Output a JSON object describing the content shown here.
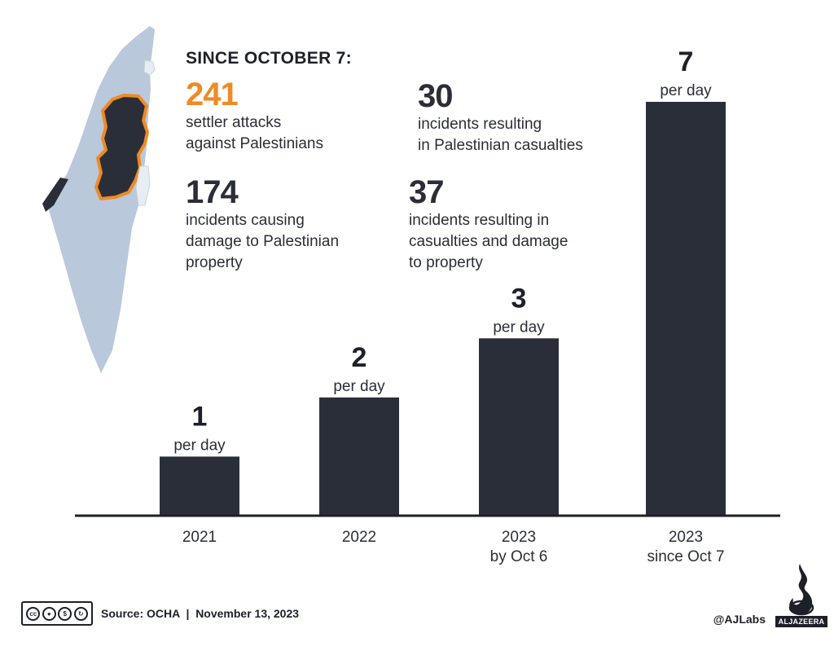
{
  "heading": "SINCE OCTOBER 7:",
  "stats": [
    {
      "number": "241",
      "text_lines": [
        "settler attacks",
        "against Palestinians"
      ]
    },
    {
      "number": "30",
      "text_lines": [
        "incidents resulting",
        "in Palestinian casualties"
      ]
    },
    {
      "number": "174",
      "text_lines": [
        "incidents causing",
        "damage to Palestinian",
        "property"
      ]
    },
    {
      "number": "37",
      "text_lines": [
        "incidents resulting in",
        "casualties and damage",
        "to property"
      ]
    }
  ],
  "colors": {
    "accent": "#f08a24",
    "bar": "#2a2e38",
    "map_land": "#b9c8da",
    "map_territory": "#2a2e38"
  },
  "chart_data": {
    "type": "bar",
    "title": "",
    "xlabel": "",
    "ylabel": "",
    "ylim": [
      0,
      7
    ],
    "grid": false,
    "categories": [
      [
        "2021"
      ],
      [
        "2022"
      ],
      [
        "2023",
        "by Oct 6"
      ],
      [
        "2023",
        "since Oct 7"
      ]
    ],
    "values": [
      1,
      2,
      3,
      7
    ],
    "value_labels": [
      "1",
      "2",
      "3",
      "7"
    ],
    "unit_label": "per day"
  },
  "footer": {
    "license_icons": [
      "cc",
      "by",
      "nc",
      "sa"
    ],
    "license_text": [
      "BY",
      "NC",
      "SA"
    ],
    "source": "Source: OCHA  |  November 13, 2023",
    "handle": "@AJLabs",
    "brand": "ALJAZEERA"
  }
}
